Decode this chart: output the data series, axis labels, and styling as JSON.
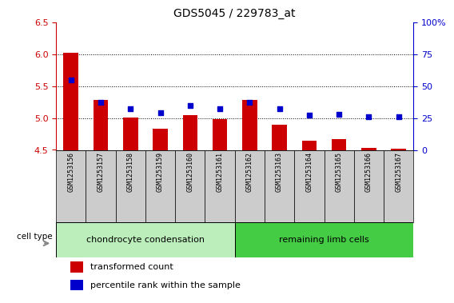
{
  "title": "GDS5045 / 229783_at",
  "samples": [
    "GSM1253156",
    "GSM1253157",
    "GSM1253158",
    "GSM1253159",
    "GSM1253160",
    "GSM1253161",
    "GSM1253162",
    "GSM1253163",
    "GSM1253164",
    "GSM1253165",
    "GSM1253166",
    "GSM1253167"
  ],
  "transformed_count": [
    6.02,
    5.28,
    5.01,
    4.83,
    5.05,
    4.98,
    5.28,
    4.9,
    4.65,
    4.67,
    4.53,
    4.52
  ],
  "percentile_rank": [
    55,
    37,
    32,
    29,
    35,
    32,
    37,
    32,
    27,
    28,
    26,
    26
  ],
  "bar_baseline": 4.5,
  "ylim_left": [
    4.5,
    6.5
  ],
  "ylim_right": [
    0,
    100
  ],
  "yticks_left": [
    4.5,
    5.0,
    5.5,
    6.0,
    6.5
  ],
  "yticks_right": [
    0,
    25,
    50,
    75,
    100
  ],
  "grid_values": [
    5.0,
    5.5,
    6.0
  ],
  "bar_color": "#cc0000",
  "dot_color": "#0000cc",
  "cell_type_groups": [
    {
      "label": "chondrocyte condensation",
      "count": 6,
      "color": "#bbeebb"
    },
    {
      "label": "remaining limb cells",
      "count": 6,
      "color": "#44cc44"
    }
  ],
  "legend_items": [
    {
      "label": "transformed count",
      "color": "#cc0000"
    },
    {
      "label": "percentile rank within the sample",
      "color": "#0000cc"
    }
  ],
  "cell_type_label": "cell type",
  "sample_box_color": "#cccccc",
  "plot_bg": "#ffffff",
  "title_fontsize": 10,
  "axis_label_fontsize": 8,
  "sample_fontsize": 6,
  "celltype_fontsize": 8,
  "legend_fontsize": 8
}
